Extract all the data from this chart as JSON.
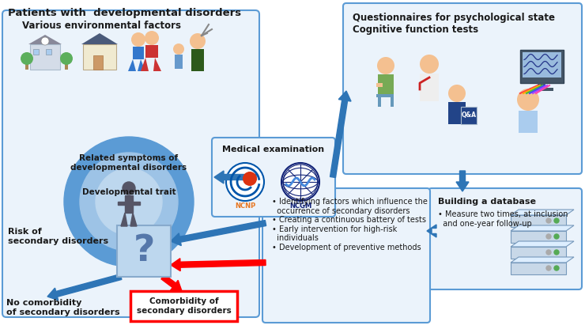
{
  "title": "Patients with  developmental disorders",
  "box1_label": "Various environmental factors",
  "box1_sublabel1": "Related symptoms of\ndevelopmental disorders",
  "box1_sublabel2": "Developmental trait",
  "box2_label": "Medical examination",
  "box3_label": "Questionnaires for psychological state\nCognitive function tests",
  "box4_label": "Building a database",
  "box4_bullet": "• Measure two times, at inclusion\n  and one-year follow-up",
  "box5_bullets": "• Identifying factors which influence the\n  occurrence of secondary disorders\n• Creating a continuous battery of tests\n• Early intervention for high-risk\n  individuals\n• Development of preventive methods",
  "label_risk": "Risk of\nsecondary disorders",
  "label_no_comorbidity": "No comorbidity\nof secondary disorders",
  "label_comorbidity": "Comorbidity of\nsecondary disorders",
  "color_box_border": "#5B9BD5",
  "color_box_fill": "#EBF3FB",
  "color_arrow_blue": "#2E75B6",
  "color_arrow_red": "#FF0000",
  "color_circle_outer": "#5B9BD5",
  "color_circle_mid": "#9DC3E6",
  "color_circle_inner": "#BDD7EE",
  "color_question_box": "#BDD7EE",
  "color_comorbidity_border": "#FF0000",
  "color_text_dark": "#1a1a1a",
  "color_ncnp_orange": "#E87722",
  "figw": 7.4,
  "figh": 4.16,
  "dpi": 100
}
